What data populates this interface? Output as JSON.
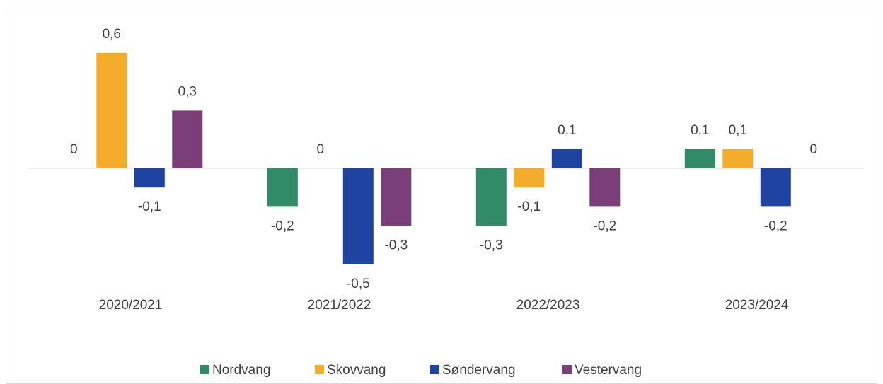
{
  "chart_data": {
    "type": "bar",
    "categories": [
      "2020/2021",
      "2021/2022",
      "2022/2023",
      "2023/2024"
    ],
    "series": [
      {
        "name": "Nordvang",
        "color": "#318a68",
        "values": [
          0,
          -0.2,
          -0.3,
          0.1
        ],
        "value_labels": [
          "0",
          "-0,2",
          "-0,3",
          "0,1"
        ]
      },
      {
        "name": "Skovvang",
        "color": "#f4ac2c",
        "values": [
          0.6,
          0,
          -0.1,
          0.1
        ],
        "value_labels": [
          "0,6",
          "0",
          "-0,1",
          "0,1"
        ]
      },
      {
        "name": "Søndervang",
        "color": "#1f43a0",
        "values": [
          -0.1,
          -0.5,
          0.1,
          -0.2
        ],
        "value_labels": [
          "-0,1",
          "-0,5",
          "0,1",
          "-0,2"
        ]
      },
      {
        "name": "Vestervang",
        "color": "#7a3f78",
        "values": [
          0.3,
          -0.3,
          -0.2,
          0
        ],
        "value_labels": [
          "0,3",
          "-0,3",
          "-0,2",
          "0"
        ]
      }
    ],
    "legend": "bottom"
  }
}
